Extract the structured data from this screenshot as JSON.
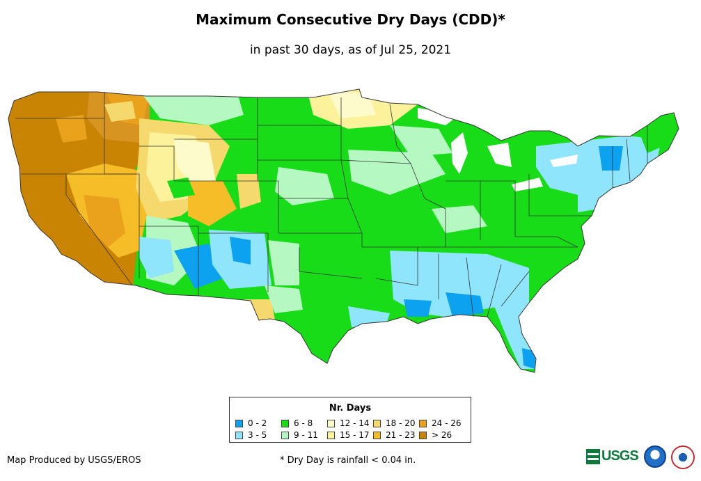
{
  "header": {
    "title": "Maximum Consecutive Dry Days (CDD)*",
    "subtitle": "in past 30 days, as of Jul 25, 2021"
  },
  "legend": {
    "title": "Nr. Days",
    "items": [
      {
        "label": "0 - 2",
        "color": "#0da2ef"
      },
      {
        "label": "6 - 8",
        "color": "#18dc18"
      },
      {
        "label": "12 - 14",
        "color": "#fdfbcc"
      },
      {
        "label": "18 - 20",
        "color": "#f5d96c"
      },
      {
        "label": "24 - 26",
        "color": "#eaa11b"
      },
      {
        "label": "3 - 5",
        "color": "#8fe5fb"
      },
      {
        "label": "9 - 11",
        "color": "#b5f8c1"
      },
      {
        "label": "15 - 17",
        "color": "#fbf29b"
      },
      {
        "label": "21 - 23",
        "color": "#f5bd28"
      },
      {
        "label": "> 26",
        "color": "#c98404"
      }
    ]
  },
  "footer": {
    "credit": "Map Produced by USGS/EROS",
    "footnote": "* Dry Day is rainfall < 0.04 in.",
    "usgs_logo_text": "USGS"
  },
  "map": {
    "region": "Contiguous United States",
    "palette": {
      "lake": "#ffffff",
      "border": "#333333"
    }
  }
}
